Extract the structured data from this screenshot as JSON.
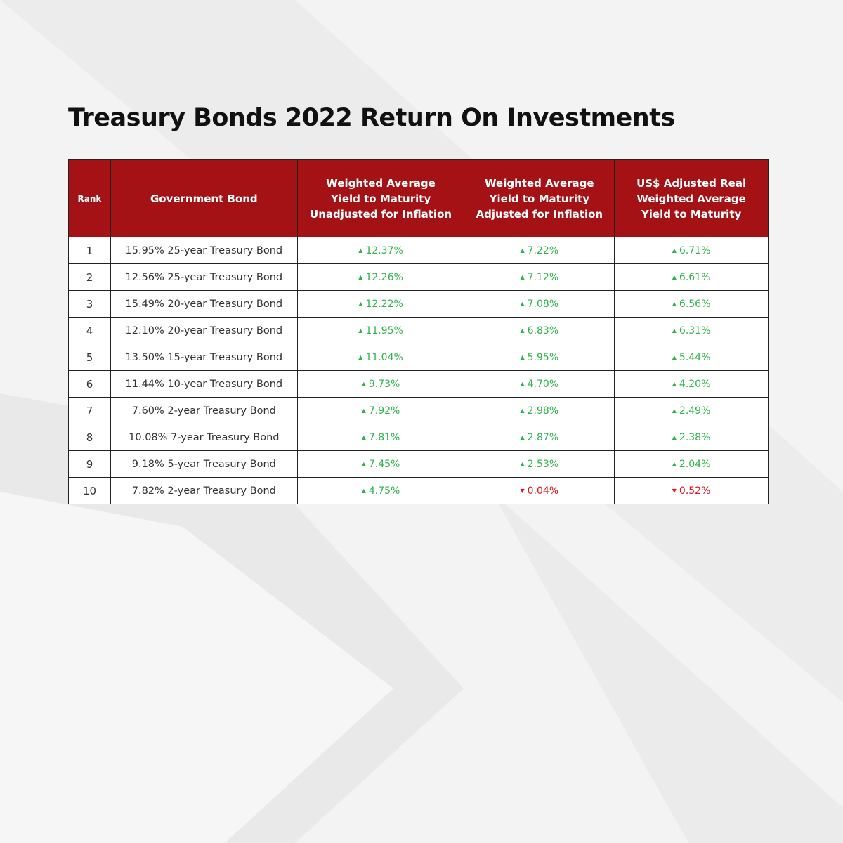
{
  "header": {
    "title": "Treasury Bonds 2022 Return On Investments"
  },
  "table": {
    "columns": [
      "Rank",
      "Government Bond",
      "Weighted Average\nYield to Maturity\nUnadjusted for Inflation",
      "Weighted Average\nYield to Maturity\nAdjusted for Inflation",
      "US$ Adjusted Real\nWeighted Average\nYield to Maturity"
    ],
    "rows": [
      [
        "1",
        "15.95% 25-year Treasury Bond",
        {
          "text": "12.37%",
          "dir": "up"
        },
        {
          "text": "7.22%",
          "dir": "up"
        },
        {
          "text": "6.71%",
          "dir": "up"
        }
      ],
      [
        "2",
        "12.56% 25-year Treasury Bond",
        {
          "text": "12.26%",
          "dir": "up"
        },
        {
          "text": "7.12%",
          "dir": "up"
        },
        {
          "text": "6.61%",
          "dir": "up"
        }
      ],
      [
        "3",
        "15.49% 20-year Treasury Bond",
        {
          "text": "12.22%",
          "dir": "up"
        },
        {
          "text": "7.08%",
          "dir": "up"
        },
        {
          "text": "6.56%",
          "dir": "up"
        }
      ],
      [
        "4",
        "12.10% 20-year Treasury Bond",
        {
          "text": "11.95%",
          "dir": "up"
        },
        {
          "text": "6.83%",
          "dir": "up"
        },
        {
          "text": "6.31%",
          "dir": "up"
        }
      ],
      [
        "5",
        "13.50% 15-year Treasury Bond",
        {
          "text": "11.04%",
          "dir": "up"
        },
        {
          "text": "5.95%",
          "dir": "up"
        },
        {
          "text": "5.44%",
          "dir": "up"
        }
      ],
      [
        "6",
        "11.44% 10-year Treasury Bond",
        {
          "text": "9.73%",
          "dir": "up"
        },
        {
          "text": "4.70%",
          "dir": "up"
        },
        {
          "text": "4.20%",
          "dir": "up"
        }
      ],
      [
        "7",
        "7.60% 2-year Treasury Bond",
        {
          "text": "7.92%",
          "dir": "up"
        },
        {
          "text": "2.98%",
          "dir": "up"
        },
        {
          "text": "2.49%",
          "dir": "up"
        }
      ],
      [
        "8",
        "10.08% 7-year Treasury Bond",
        {
          "text": "7.81%",
          "dir": "up"
        },
        {
          "text": "2.87%",
          "dir": "up"
        },
        {
          "text": "2.38%",
          "dir": "up"
        }
      ],
      [
        "9",
        "9.18% 5-year Treasury Bond",
        {
          "text": "7.45%",
          "dir": "up"
        },
        {
          "text": "2.53%",
          "dir": "up"
        },
        {
          "text": "2.04%",
          "dir": "up"
        }
      ],
      [
        "10",
        "7.82% 2-year Treasury Bond",
        {
          "text": "4.75%",
          "dir": "up"
        },
        {
          "text": "0.04%",
          "dir": "down"
        },
        {
          "text": "0.52%",
          "dir": "down"
        }
      ]
    ]
  }
}
